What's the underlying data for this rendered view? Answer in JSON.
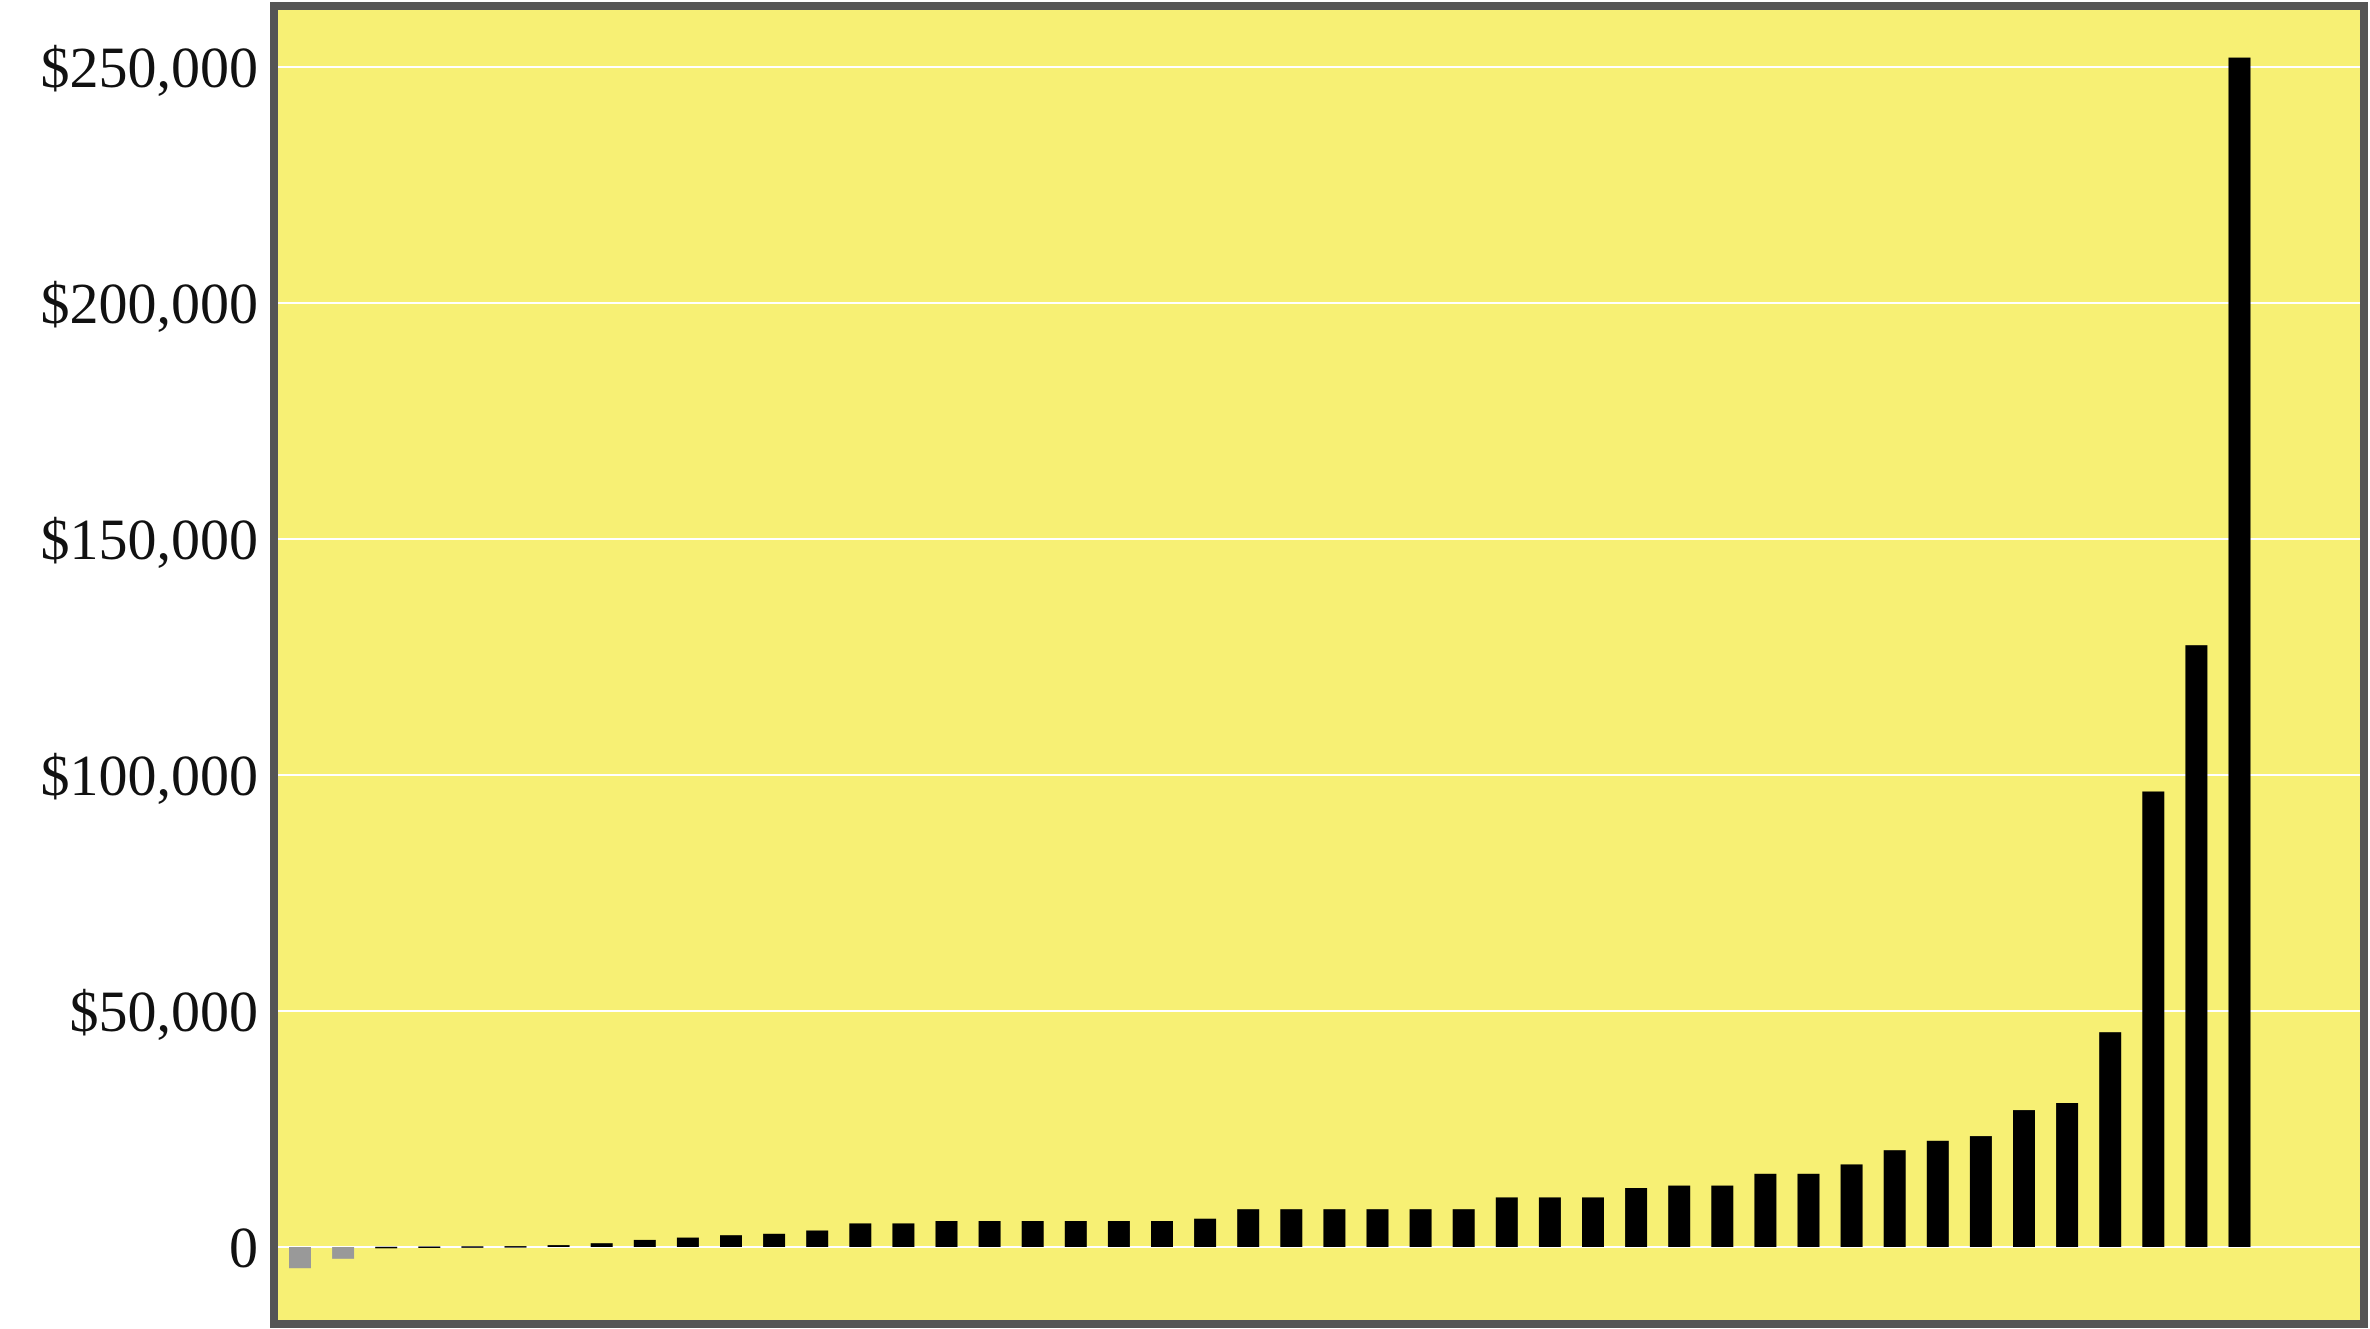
{
  "chart_data": {
    "type": "bar",
    "title": "",
    "xlabel": "",
    "ylabel": "",
    "ylim": [
      -5000,
      260000
    ],
    "yticks": [
      0,
      50000,
      100000,
      150000,
      200000,
      250000
    ],
    "ytick_labels": [
      "0",
      "$50,000",
      "$100,000",
      "$150,000",
      "$200,000",
      "$250,000"
    ],
    "grid": true,
    "legend": "none",
    "colors": {
      "background": "#F7F074",
      "frame": "#555555",
      "gridline": "#FFFFFF",
      "positive_bar": "#000000",
      "negative_bar": "#999999"
    },
    "values": [
      -4500,
      -2500,
      50,
      100,
      150,
      200,
      400,
      800,
      1500,
      2000,
      2500,
      2800,
      3500,
      5000,
      5000,
      5500,
      5500,
      5500,
      5500,
      5500,
      5500,
      6000,
      8000,
      8000,
      8000,
      8000,
      8000,
      8000,
      10500,
      10500,
      10500,
      12500,
      13000,
      13000,
      15500,
      15500,
      17500,
      20500,
      22500,
      23500,
      29000,
      30500,
      45500,
      96500,
      127500,
      252000
    ]
  }
}
